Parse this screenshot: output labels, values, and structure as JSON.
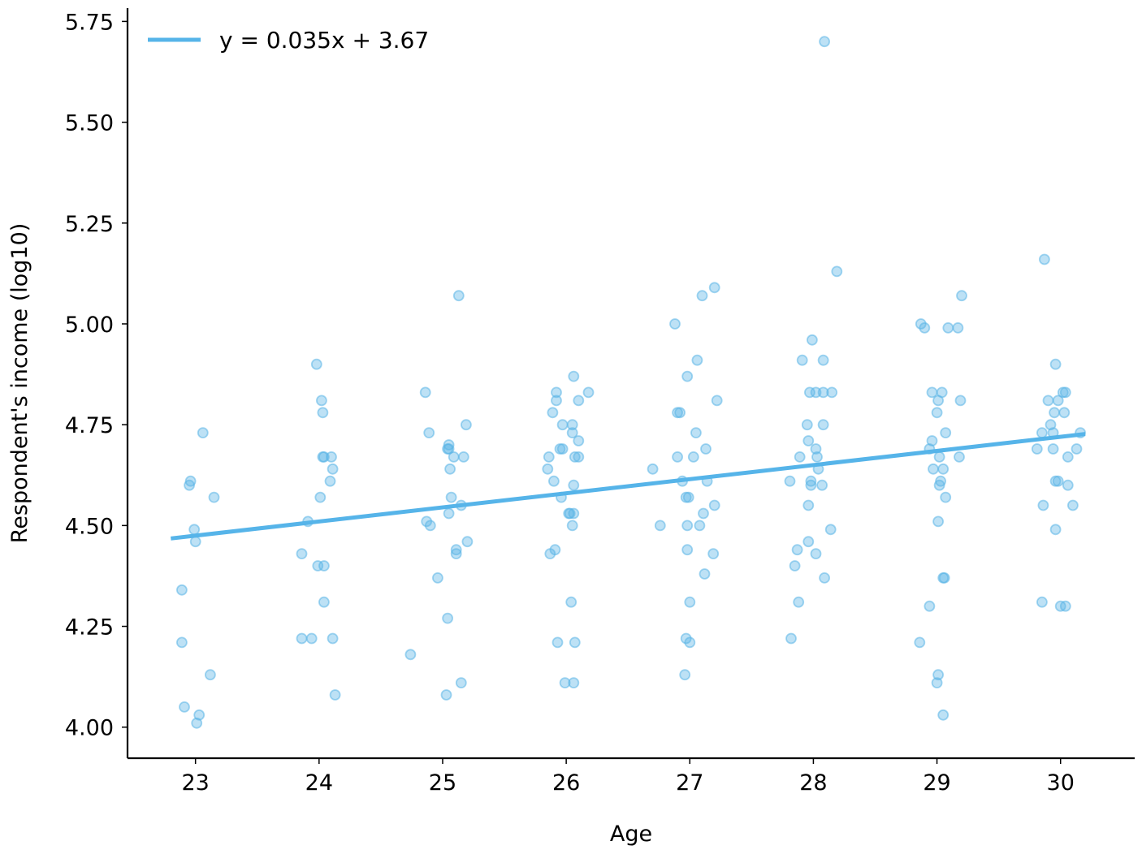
{
  "chart_data": {
    "type": "scatter",
    "title": "",
    "xlabel": "Age",
    "ylabel": "Respondent's income (log10)",
    "xlim": [
      22.45,
      30.6
    ],
    "ylim": [
      3.923,
      5.783
    ],
    "x_ticks": [
      {
        "value": 23,
        "label": "23"
      },
      {
        "value": 24,
        "label": "24"
      },
      {
        "value": 25,
        "label": "25"
      },
      {
        "value": 26,
        "label": "26"
      },
      {
        "value": 27,
        "label": "27"
      },
      {
        "value": 28,
        "label": "28"
      },
      {
        "value": 29,
        "label": "29"
      },
      {
        "value": 30,
        "label": "30"
      }
    ],
    "y_ticks": [
      {
        "value": 4.0,
        "label": "4.00"
      },
      {
        "value": 4.25,
        "label": "4.25"
      },
      {
        "value": 4.5,
        "label": "4.50"
      },
      {
        "value": 4.75,
        "label": "4.75"
      },
      {
        "value": 5.0,
        "label": "5.00"
      },
      {
        "value": 5.25,
        "label": "5.25"
      },
      {
        "value": 5.5,
        "label": "5.50"
      },
      {
        "value": 5.75,
        "label": "5.75"
      }
    ],
    "grid": false,
    "legend_position": "top-left",
    "colors": {
      "points": "#5ab4e6",
      "fit_line": "#56b4e9",
      "axis": "#000000"
    },
    "fit_line": {
      "label": "y = 0.035x + 3.67",
      "x": [
        22.8,
        30.2
      ],
      "y": [
        4.468,
        4.727
      ]
    },
    "points": [
      [
        23.06,
        4.73
      ],
      [
        23.15,
        4.57
      ],
      [
        22.96,
        4.61
      ],
      [
        22.95,
        4.6
      ],
      [
        22.99,
        4.49
      ],
      [
        23.0,
        4.46
      ],
      [
        22.89,
        4.34
      ],
      [
        22.89,
        4.21
      ],
      [
        23.12,
        4.13
      ],
      [
        22.91,
        4.05
      ],
      [
        23.03,
        4.03
      ],
      [
        23.01,
        4.01
      ],
      [
        23.98,
        4.9
      ],
      [
        24.02,
        4.81
      ],
      [
        24.03,
        4.78
      ],
      [
        24.03,
        4.67
      ],
      [
        24.04,
        4.67
      ],
      [
        24.1,
        4.67
      ],
      [
        24.11,
        4.64
      ],
      [
        24.09,
        4.61
      ],
      [
        24.01,
        4.57
      ],
      [
        23.91,
        4.51
      ],
      [
        23.86,
        4.43
      ],
      [
        23.99,
        4.4
      ],
      [
        24.04,
        4.4
      ],
      [
        24.04,
        4.31
      ],
      [
        23.86,
        4.22
      ],
      [
        23.94,
        4.22
      ],
      [
        24.11,
        4.22
      ],
      [
        24.13,
        4.08
      ],
      [
        25.13,
        5.07
      ],
      [
        24.86,
        4.83
      ],
      [
        24.89,
        4.73
      ],
      [
        25.19,
        4.75
      ],
      [
        25.05,
        4.7
      ],
      [
        25.04,
        4.69
      ],
      [
        25.05,
        4.69
      ],
      [
        25.09,
        4.67
      ],
      [
        25.17,
        4.67
      ],
      [
        25.06,
        4.64
      ],
      [
        25.07,
        4.57
      ],
      [
        25.15,
        4.55
      ],
      [
        25.05,
        4.53
      ],
      [
        24.87,
        4.51
      ],
      [
        24.9,
        4.5
      ],
      [
        25.2,
        4.46
      ],
      [
        25.11,
        4.44
      ],
      [
        25.11,
        4.43
      ],
      [
        24.96,
        4.37
      ],
      [
        25.04,
        4.27
      ],
      [
        24.74,
        4.18
      ],
      [
        25.15,
        4.11
      ],
      [
        25.03,
        4.08
      ],
      [
        26.06,
        4.87
      ],
      [
        25.92,
        4.83
      ],
      [
        26.18,
        4.83
      ],
      [
        25.92,
        4.81
      ],
      [
        26.1,
        4.81
      ],
      [
        25.89,
        4.78
      ],
      [
        25.97,
        4.75
      ],
      [
        26.05,
        4.75
      ],
      [
        26.05,
        4.73
      ],
      [
        26.1,
        4.71
      ],
      [
        25.95,
        4.69
      ],
      [
        25.97,
        4.69
      ],
      [
        25.86,
        4.67
      ],
      [
        26.07,
        4.67
      ],
      [
        26.1,
        4.67
      ],
      [
        25.85,
        4.64
      ],
      [
        25.9,
        4.61
      ],
      [
        26.06,
        4.6
      ],
      [
        25.96,
        4.57
      ],
      [
        26.02,
        4.53
      ],
      [
        26.03,
        4.53
      ],
      [
        26.06,
        4.53
      ],
      [
        26.05,
        4.5
      ],
      [
        25.91,
        4.44
      ],
      [
        25.87,
        4.43
      ],
      [
        26.04,
        4.31
      ],
      [
        25.93,
        4.21
      ],
      [
        26.07,
        4.21
      ],
      [
        25.99,
        4.11
      ],
      [
        26.06,
        4.11
      ],
      [
        27.1,
        5.07
      ],
      [
        27.2,
        5.09
      ],
      [
        26.88,
        5.0
      ],
      [
        27.06,
        4.91
      ],
      [
        26.98,
        4.87
      ],
      [
        27.22,
        4.81
      ],
      [
        26.9,
        4.78
      ],
      [
        26.92,
        4.78
      ],
      [
        27.05,
        4.73
      ],
      [
        27.13,
        4.69
      ],
      [
        26.9,
        4.67
      ],
      [
        27.03,
        4.67
      ],
      [
        26.7,
        4.64
      ],
      [
        26.94,
        4.61
      ],
      [
        27.14,
        4.61
      ],
      [
        26.97,
        4.57
      ],
      [
        26.99,
        4.57
      ],
      [
        27.2,
        4.55
      ],
      [
        27.11,
        4.53
      ],
      [
        26.76,
        4.5
      ],
      [
        26.98,
        4.5
      ],
      [
        27.08,
        4.5
      ],
      [
        26.98,
        4.44
      ],
      [
        27.19,
        4.43
      ],
      [
        27.12,
        4.38
      ],
      [
        27.0,
        4.31
      ],
      [
        26.97,
        4.22
      ],
      [
        27.0,
        4.21
      ],
      [
        26.96,
        4.13
      ],
      [
        28.09,
        5.7
      ],
      [
        28.19,
        5.13
      ],
      [
        27.99,
        4.96
      ],
      [
        27.91,
        4.91
      ],
      [
        28.08,
        4.91
      ],
      [
        27.97,
        4.83
      ],
      [
        28.02,
        4.83
      ],
      [
        28.08,
        4.83
      ],
      [
        28.15,
        4.83
      ],
      [
        27.95,
        4.75
      ],
      [
        28.08,
        4.75
      ],
      [
        27.96,
        4.71
      ],
      [
        28.02,
        4.69
      ],
      [
        27.89,
        4.67
      ],
      [
        28.03,
        4.67
      ],
      [
        28.04,
        4.64
      ],
      [
        27.81,
        4.61
      ],
      [
        27.98,
        4.61
      ],
      [
        27.98,
        4.6
      ],
      [
        28.07,
        4.6
      ],
      [
        27.96,
        4.55
      ],
      [
        28.14,
        4.49
      ],
      [
        27.96,
        4.46
      ],
      [
        27.87,
        4.44
      ],
      [
        28.02,
        4.43
      ],
      [
        27.85,
        4.4
      ],
      [
        28.09,
        4.37
      ],
      [
        27.88,
        4.31
      ],
      [
        27.82,
        4.22
      ],
      [
        29.2,
        5.07
      ],
      [
        28.87,
        5.0
      ],
      [
        28.9,
        4.99
      ],
      [
        29.09,
        4.99
      ],
      [
        29.17,
        4.99
      ],
      [
        28.96,
        4.83
      ],
      [
        29.04,
        4.83
      ],
      [
        29.01,
        4.81
      ],
      [
        29.19,
        4.81
      ],
      [
        29.0,
        4.78
      ],
      [
        29.07,
        4.73
      ],
      [
        28.96,
        4.71
      ],
      [
        28.94,
        4.69
      ],
      [
        29.02,
        4.67
      ],
      [
        29.18,
        4.67
      ],
      [
        28.97,
        4.64
      ],
      [
        29.05,
        4.64
      ],
      [
        29.03,
        4.61
      ],
      [
        29.02,
        4.6
      ],
      [
        29.07,
        4.57
      ],
      [
        29.01,
        4.51
      ],
      [
        29.05,
        4.37
      ],
      [
        29.06,
        4.37
      ],
      [
        28.94,
        4.3
      ],
      [
        28.86,
        4.21
      ],
      [
        29.01,
        4.13
      ],
      [
        29.0,
        4.11
      ],
      [
        29.05,
        4.03
      ],
      [
        29.87,
        5.16
      ],
      [
        29.96,
        4.9
      ],
      [
        29.9,
        4.81
      ],
      [
        29.98,
        4.81
      ],
      [
        30.02,
        4.83
      ],
      [
        30.04,
        4.83
      ],
      [
        29.95,
        4.78
      ],
      [
        30.03,
        4.78
      ],
      [
        29.92,
        4.75
      ],
      [
        29.85,
        4.73
      ],
      [
        29.94,
        4.73
      ],
      [
        30.16,
        4.73
      ],
      [
        29.81,
        4.69
      ],
      [
        29.94,
        4.69
      ],
      [
        30.13,
        4.69
      ],
      [
        30.06,
        4.67
      ],
      [
        29.96,
        4.61
      ],
      [
        29.98,
        4.61
      ],
      [
        30.06,
        4.6
      ],
      [
        29.86,
        4.55
      ],
      [
        30.1,
        4.55
      ],
      [
        29.96,
        4.49
      ],
      [
        29.85,
        4.31
      ],
      [
        30.0,
        4.3
      ],
      [
        30.04,
        4.3
      ]
    ]
  }
}
